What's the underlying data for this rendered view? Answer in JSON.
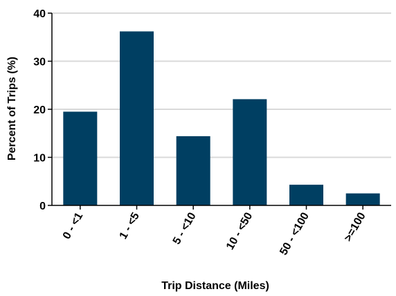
{
  "chart_data": {
    "type": "bar",
    "title": "",
    "xlabel": "Trip Distance (Miles)",
    "ylabel": "Percent of Trips (%)",
    "categories": [
      "0 - <1",
      "1 - <5",
      "5 - <10",
      "10 - <50",
      "50 - <100",
      ">=100"
    ],
    "values": [
      19.5,
      36.2,
      14.4,
      22.1,
      4.3,
      2.5
    ],
    "ylim": [
      0,
      40
    ],
    "yticks": [
      "0",
      "10",
      "20",
      "30",
      "40"
    ],
    "grid": true,
    "bar_color": "#003f62",
    "grid_color": "#d9d9d9"
  }
}
